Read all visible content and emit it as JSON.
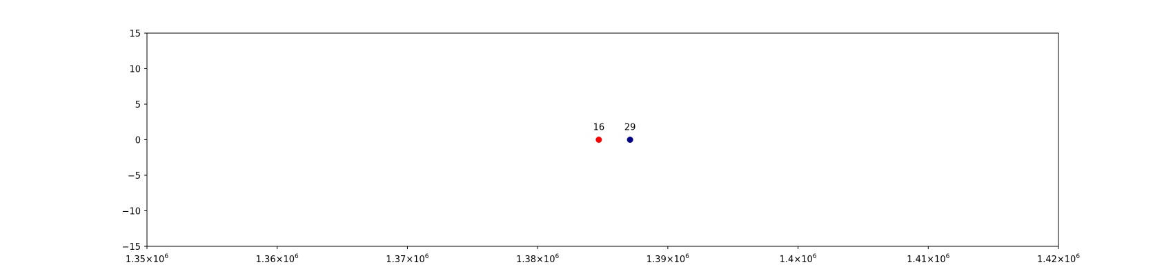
{
  "chart_data": {
    "type": "scatter",
    "title": "",
    "xlabel": "",
    "ylabel": "",
    "xlim": [
      1350000,
      1420000
    ],
    "ylim": [
      -15,
      15
    ],
    "grid": false,
    "x_ticks": [
      {
        "value": 1350000,
        "mantissa": "1.35",
        "base": "×10",
        "exp": "6"
      },
      {
        "value": 1360000,
        "mantissa": "1.36",
        "base": "×10",
        "exp": "6"
      },
      {
        "value": 1370000,
        "mantissa": "1.37",
        "base": "×10",
        "exp": "6"
      },
      {
        "value": 1380000,
        "mantissa": "1.38",
        "base": "×10",
        "exp": "6"
      },
      {
        "value": 1390000,
        "mantissa": "1.39",
        "base": "×10",
        "exp": "6"
      },
      {
        "value": 1400000,
        "mantissa": "1.4",
        "base": "×10",
        "exp": "6"
      },
      {
        "value": 1410000,
        "mantissa": "1.41",
        "base": "×10",
        "exp": "6"
      },
      {
        "value": 1420000,
        "mantissa": "1.42",
        "base": "×10",
        "exp": "6"
      }
    ],
    "y_ticks": [
      {
        "value": 15,
        "label": "15"
      },
      {
        "value": 10,
        "label": "10"
      },
      {
        "value": 5,
        "label": "5"
      },
      {
        "value": 0,
        "label": "0"
      },
      {
        "value": -5,
        "label": "−5"
      },
      {
        "value": -10,
        "label": "−10"
      },
      {
        "value": -15,
        "label": "−15"
      }
    ],
    "points": [
      {
        "x": 1384700,
        "y": 0,
        "label": "16",
        "color": "#ff0000"
      },
      {
        "x": 1387100,
        "y": 0,
        "label": "29",
        "color": "#00008b"
      }
    ]
  }
}
